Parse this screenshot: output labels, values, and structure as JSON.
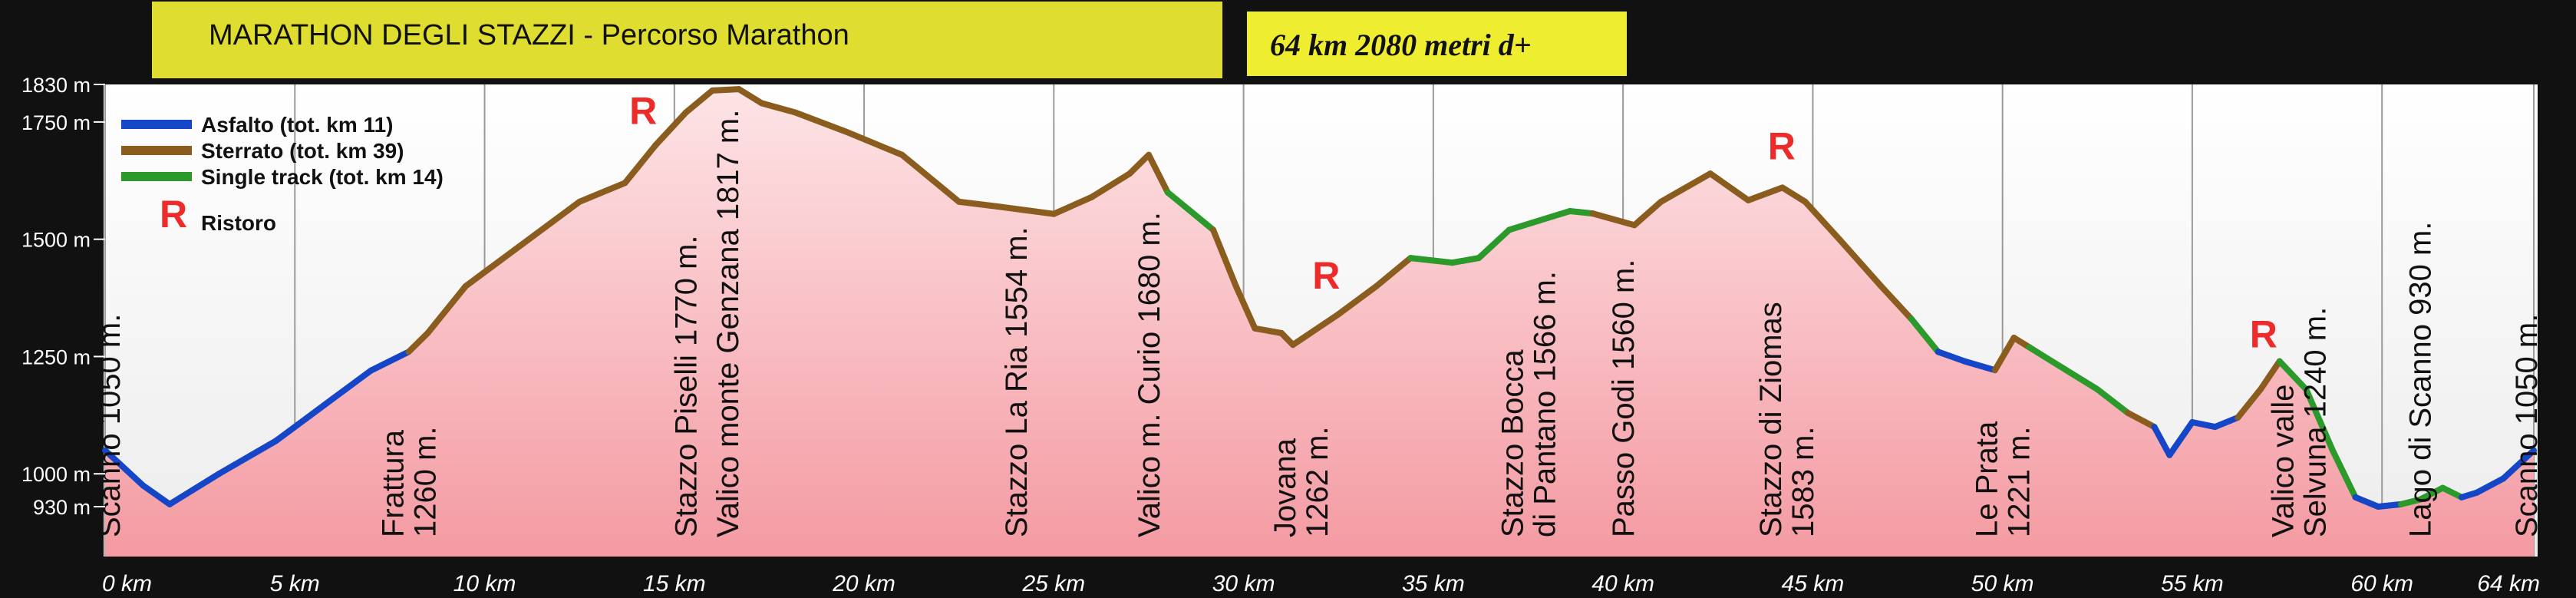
{
  "title_main": "MARATHON DEGLI STAZZI -  Percorso Marathon",
  "title_stats": "64 km   2080 metri d+",
  "chart_data": {
    "type": "area",
    "xlabel": "",
    "ylabel": "",
    "xlim": [
      0,
      64
    ],
    "ylim": [
      830,
      1850
    ],
    "x_ticks": [
      0,
      5,
      10,
      15,
      20,
      25,
      30,
      35,
      40,
      45,
      50,
      55,
      60,
      64
    ],
    "x_tick_labels": [
      "0 km",
      "5 km",
      "10 km",
      "15 km",
      "20 km",
      "25 km",
      "30 km",
      "35 km",
      "40 km",
      "45 km",
      "50 km",
      "55 km",
      "60 km",
      "64 km"
    ],
    "y_ticks": [
      930,
      1000,
      1250,
      1500,
      1750,
      1830
    ],
    "y_tick_labels": [
      "930 m",
      "1000 m",
      "1250 m",
      "1500 m",
      "1750 m",
      "1830 m"
    ],
    "grid": "vertical",
    "legend_position": "top-left",
    "surface_colors": {
      "asfalto": "#1646c8",
      "sterrato": "#8a5c1e",
      "single": "#2b9a2b"
    },
    "legend": [
      {
        "label": "Asfalto (tot. km 11)",
        "surface": "asfalto"
      },
      {
        "label": "Sterrato (tot. km 39)",
        "surface": "sterrato"
      },
      {
        "label": "Single track (tot. km 14)",
        "surface": "single"
      },
      {
        "label": "Ristoro",
        "surface": "ristoro"
      }
    ],
    "ristoro_symbol": "R",
    "ristoro_km": [
      14.3,
      32.3,
      44.3,
      57.0
    ],
    "profile": [
      [
        0,
        1050,
        "asfalto"
      ],
      [
        1.0,
        975,
        "asfalto"
      ],
      [
        1.7,
        935,
        "asfalto"
      ],
      [
        3.0,
        1000,
        "asfalto"
      ],
      [
        4.5,
        1070,
        "asfalto"
      ],
      [
        6.0,
        1160,
        "asfalto"
      ],
      [
        7.0,
        1220,
        "asfalto"
      ],
      [
        8.0,
        1260,
        "asfalto"
      ],
      [
        8.5,
        1300,
        "sterrato"
      ],
      [
        9.5,
        1400,
        "sterrato"
      ],
      [
        11.0,
        1490,
        "sterrato"
      ],
      [
        12.5,
        1580,
        "sterrato"
      ],
      [
        13.7,
        1620,
        "sterrato"
      ],
      [
        14.5,
        1700,
        "sterrato"
      ],
      [
        15.3,
        1770,
        "sterrato"
      ],
      [
        16.0,
        1817,
        "sterrato"
      ],
      [
        16.7,
        1820,
        "sterrato"
      ],
      [
        17.3,
        1790,
        "sterrato"
      ],
      [
        18.2,
        1770,
        "sterrato"
      ],
      [
        19.5,
        1730,
        "sterrato"
      ],
      [
        21.0,
        1680,
        "sterrato"
      ],
      [
        22.5,
        1580,
        "sterrato"
      ],
      [
        23.5,
        1570,
        "sterrato"
      ],
      [
        25.0,
        1554,
        "sterrato"
      ],
      [
        26.0,
        1590,
        "sterrato"
      ],
      [
        27.0,
        1640,
        "sterrato"
      ],
      [
        27.5,
        1680,
        "sterrato"
      ],
      [
        28.0,
        1600,
        "sterrato"
      ],
      [
        29.2,
        1520,
        "single"
      ],
      [
        29.8,
        1400,
        "sterrato"
      ],
      [
        30.3,
        1310,
        "sterrato"
      ],
      [
        31.0,
        1300,
        "sterrato"
      ],
      [
        31.3,
        1275,
        "sterrato"
      ],
      [
        32.5,
        1340,
        "sterrato"
      ],
      [
        33.5,
        1400,
        "sterrato"
      ],
      [
        34.4,
        1460,
        "sterrato"
      ],
      [
        35.5,
        1450,
        "single"
      ],
      [
        36.2,
        1460,
        "single"
      ],
      [
        37.0,
        1520,
        "single"
      ],
      [
        37.8,
        1540,
        "single"
      ],
      [
        38.6,
        1560,
        "single"
      ],
      [
        39.2,
        1555,
        "single"
      ],
      [
        40.3,
        1530,
        "sterrato"
      ],
      [
        41.0,
        1580,
        "sterrato"
      ],
      [
        42.3,
        1640,
        "sterrato"
      ],
      [
        43.3,
        1583,
        "sterrato"
      ],
      [
        44.2,
        1610,
        "sterrato"
      ],
      [
        44.8,
        1580,
        "sterrato"
      ],
      [
        45.7,
        1500,
        "sterrato"
      ],
      [
        46.8,
        1400,
        "sterrato"
      ],
      [
        47.6,
        1330,
        "sterrato"
      ],
      [
        48.3,
        1260,
        "single"
      ],
      [
        49.0,
        1240,
        "asfalto"
      ],
      [
        49.8,
        1221,
        "asfalto"
      ],
      [
        50.3,
        1290,
        "sterrato"
      ],
      [
        50.7,
        1270,
        "sterrato"
      ],
      [
        51.5,
        1230,
        "single"
      ],
      [
        52.5,
        1180,
        "single"
      ],
      [
        53.3,
        1130,
        "single"
      ],
      [
        54.0,
        1100,
        "sterrato"
      ],
      [
        54.4,
        1040,
        "asfalto"
      ],
      [
        55.0,
        1110,
        "asfalto"
      ],
      [
        55.6,
        1100,
        "asfalto"
      ],
      [
        56.2,
        1120,
        "asfalto"
      ],
      [
        56.8,
        1180,
        "sterrato"
      ],
      [
        57.3,
        1240,
        "sterrato"
      ],
      [
        58.0,
        1180,
        "single"
      ],
      [
        58.7,
        1050,
        "single"
      ],
      [
        59.3,
        950,
        "single"
      ],
      [
        59.9,
        930,
        "asfalto"
      ],
      [
        60.5,
        935,
        "asfalto"
      ],
      [
        61.0,
        945,
        "single"
      ],
      [
        61.6,
        970,
        "single"
      ],
      [
        62.1,
        950,
        "single"
      ],
      [
        62.5,
        960,
        "asfalto"
      ],
      [
        63.2,
        990,
        "asfalto"
      ],
      [
        64.0,
        1050,
        "asfalto"
      ]
    ],
    "annotations": [
      {
        "km": 0.1,
        "lines": [
          "Scanno 1050 m."
        ],
        "end_elev": 1050
      },
      {
        "km": 8.0,
        "lines": [
          "Frattura",
          "1260 m."
        ],
        "end_elev": 1260
      },
      {
        "km": 15.3,
        "lines": [
          "Stazzo Piselli 1770 m."
        ],
        "end_elev": 1770
      },
      {
        "km": 16.4,
        "lines": [
          "Valico monte Genzana 1817 m."
        ],
        "end_elev": 1817
      },
      {
        "km": 24.0,
        "lines": [
          "Stazzo La Ria 1554 m."
        ],
        "end_elev": 1554
      },
      {
        "km": 27.5,
        "lines": [
          "Valico m. Curio 1680 m."
        ],
        "end_elev": 1680
      },
      {
        "km": 31.5,
        "lines": [
          "Jovana",
          "1262 m."
        ],
        "end_elev": 1262
      },
      {
        "km": 37.5,
        "lines": [
          "Stazzo Bocca",
          "di Pantano 1566 m."
        ],
        "end_elev": 1566
      },
      {
        "km": 40.0,
        "lines": [
          "Passo Godi 1560 m."
        ],
        "end_elev": 1560
      },
      {
        "km": 44.3,
        "lines": [
          "Stazzo di Ziomas",
          "1583 m."
        ],
        "end_elev": 1583
      },
      {
        "km": 50.0,
        "lines": [
          "Le Prata",
          "1221 m."
        ],
        "end_elev": 1221
      },
      {
        "km": 57.8,
        "lines": [
          "Valico valle",
          "Selvuna 1240 m."
        ],
        "end_elev": 1240
      },
      {
        "km": 61.0,
        "lines": [
          "Lago di Scanno 930 m."
        ],
        "end_elev": 930
      },
      {
        "km": 63.8,
        "lines": [
          "Scanno 1050 m."
        ],
        "end_elev": 1050
      }
    ]
  }
}
